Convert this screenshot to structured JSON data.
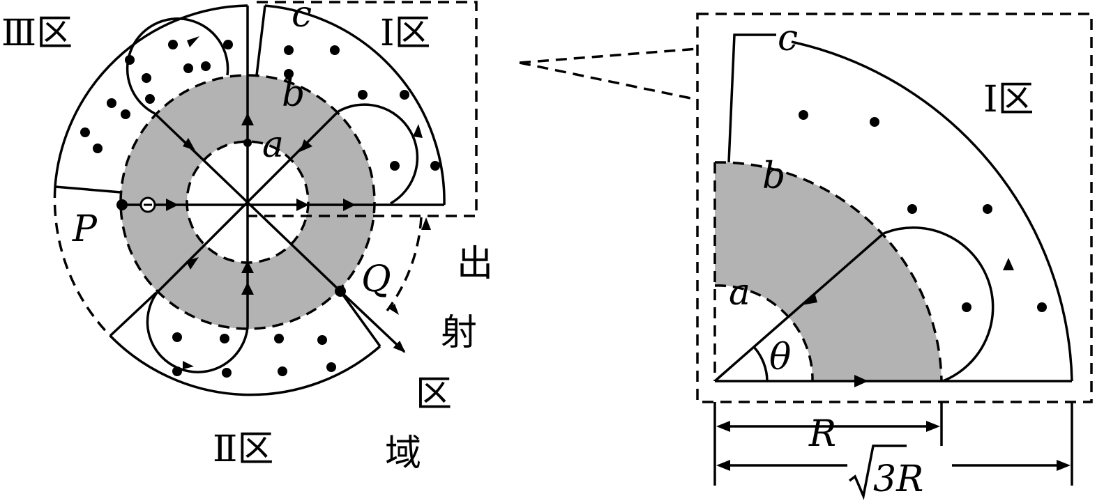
{
  "labels": {
    "region_I": "Ⅰ区",
    "region_II": "Ⅱ区",
    "region_III": "Ⅲ区",
    "exit_region": [
      "出",
      "射",
      "区",
      "域"
    ],
    "point_P": "P",
    "point_Q": "Q",
    "point_a": "a",
    "point_b": "b",
    "point_c": "c",
    "angle": "θ",
    "dim_R": "R",
    "dim_sqrt3R_num": "3R"
  },
  "colors": {
    "line": "#000000",
    "shaded_ring": "#b3b3b3",
    "background": "#ffffff"
  }
}
